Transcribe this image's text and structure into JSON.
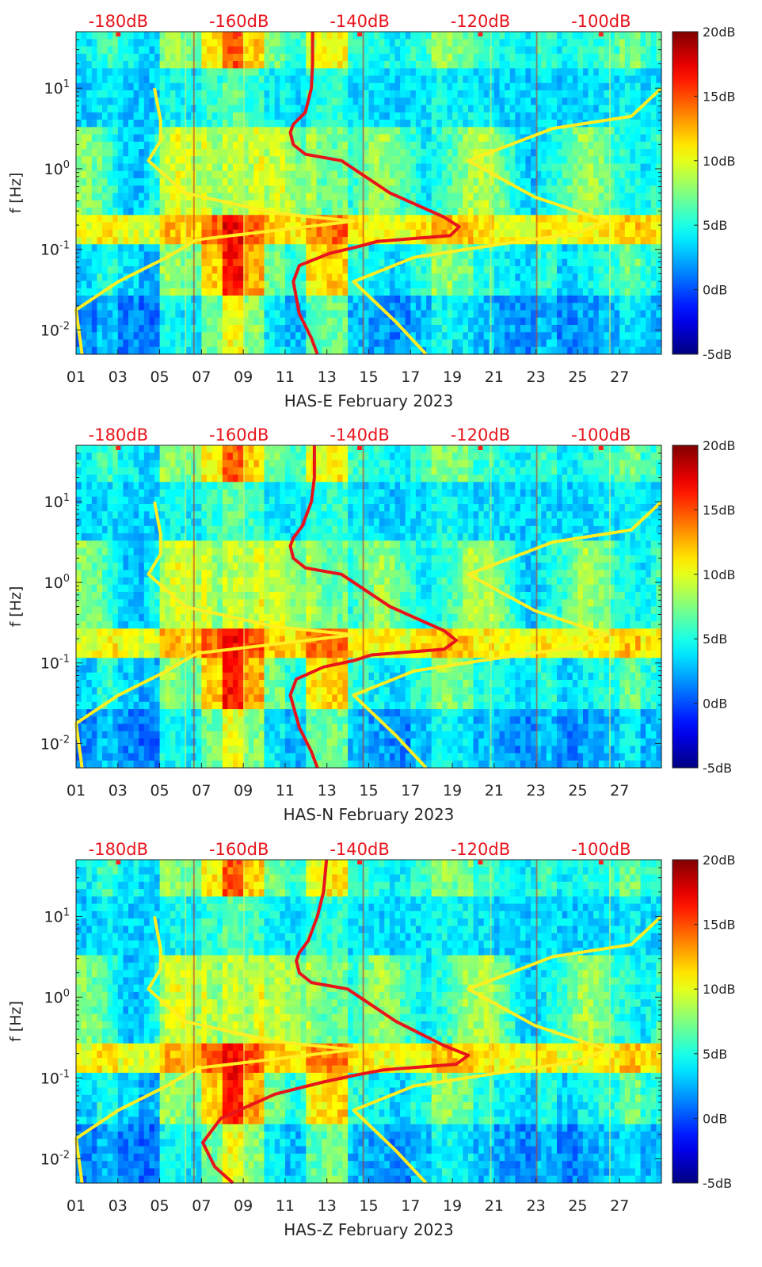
{
  "chart_data": [
    {
      "type": "heatmap",
      "title": "HAS-E February 2023",
      "xlabel": "HAS-E February 2023",
      "ylabel": "f [Hz]",
      "x_ticks": [
        "01",
        "03",
        "05",
        "07",
        "09",
        "11",
        "13",
        "15",
        "17",
        "19",
        "21",
        "23",
        "25",
        "27"
      ],
      "y_ticks": [
        "10^-2",
        "10^-1",
        "10^0",
        "10^1"
      ],
      "top_axis_ticks": [
        "-180dB",
        "-160dB",
        "-140dB",
        "-120dB",
        "-100dB"
      ],
      "colorbar_ticks": [
        "20dB",
        "15dB",
        "10dB",
        "5dB",
        "0dB",
        "-5dB"
      ],
      "xlim": [
        1,
        29
      ],
      "ylim_log10": [
        -2.3,
        1.7
      ],
      "top_axis_range_db": [
        -187,
        -90
      ],
      "color_range_db": [
        -5,
        20
      ],
      "series": [
        {
          "name": "median PSD (red)",
          "color": "#e8141c",
          "points": [
            [
              -147.8,
              1.7
            ],
            [
              -147.8,
              1.3
            ],
            [
              -148,
              1.0
            ],
            [
              -149,
              0.7
            ],
            [
              -151,
              0.55
            ],
            [
              -151.5,
              0.45
            ],
            [
              -151,
              0.3
            ],
            [
              -149,
              0.18
            ],
            [
              -143,
              0.1
            ],
            [
              -135,
              -0.3
            ],
            [
              -126,
              -0.6
            ],
            [
              -123.5,
              -0.72
            ],
            [
              -125,
              -0.83
            ],
            [
              -137,
              -0.9
            ],
            [
              -140.5,
              -0.97
            ],
            [
              -145,
              -1.05
            ],
            [
              -150,
              -1.2
            ],
            [
              -151,
              -1.4
            ],
            [
              -150,
              -1.8
            ],
            [
              -148,
              -2.1
            ],
            [
              -147,
              -2.3
            ]
          ]
        },
        {
          "name": "reference model 1 (yellow)",
          "color": "#ffee22",
          "points": [
            [
              -174,
              1.0
            ],
            [
              -173,
              0.6
            ],
            [
              -173,
              0.35
            ],
            [
              -175,
              0.1
            ],
            [
              -169,
              -0.3
            ],
            [
              -154,
              -0.55
            ],
            [
              -141,
              -0.65
            ],
            [
              -167,
              -0.88
            ],
            [
              -172,
              -1.1
            ],
            [
              -180,
              -1.4
            ],
            [
              -187,
              -1.75
            ],
            [
              -186,
              -2.3
            ]
          ]
        },
        {
          "name": "reference model 2 (yellow)",
          "color": "#ffee22",
          "points": [
            [
              -90,
              1.0
            ],
            [
              -95,
              0.65
            ],
            [
              -108,
              0.5
            ],
            [
              -122,
              0.1
            ],
            [
              -111,
              -0.35
            ],
            [
              -99,
              -0.65
            ],
            [
              -104,
              -0.8
            ],
            [
              -118,
              -0.95
            ],
            [
              -131,
              -1.1
            ],
            [
              -141,
              -1.4
            ],
            [
              -134,
              -1.9
            ],
            [
              -129,
              -2.3
            ]
          ]
        }
      ]
    },
    {
      "type": "heatmap",
      "title": "HAS-N February 2023",
      "xlabel": "HAS-N February 2023",
      "ylabel": "f [Hz]",
      "x_ticks": [
        "01",
        "03",
        "05",
        "07",
        "09",
        "11",
        "13",
        "15",
        "17",
        "19",
        "21",
        "23",
        "25",
        "27"
      ],
      "y_ticks": [
        "10^-2",
        "10^-1",
        "10^0",
        "10^1"
      ],
      "top_axis_ticks": [
        "-180dB",
        "-160dB",
        "-140dB",
        "-120dB",
        "-100dB"
      ],
      "colorbar_ticks": [
        "20dB",
        "15dB",
        "10dB",
        "5dB",
        "0dB",
        "-5dB"
      ],
      "xlim": [
        1,
        29
      ],
      "ylim_log10": [
        -2.3,
        1.7
      ],
      "top_axis_range_db": [
        -187,
        -90
      ],
      "color_range_db": [
        -5,
        20
      ],
      "series": [
        {
          "name": "median PSD (red)",
          "color": "#e8141c",
          "points": [
            [
              -147.5,
              1.7
            ],
            [
              -147.5,
              1.3
            ],
            [
              -148,
              1.0
            ],
            [
              -149.5,
              0.7
            ],
            [
              -151,
              0.55
            ],
            [
              -151.5,
              0.45
            ],
            [
              -151,
              0.3
            ],
            [
              -149,
              0.18
            ],
            [
              -143,
              0.1
            ],
            [
              -135,
              -0.3
            ],
            [
              -126,
              -0.6
            ],
            [
              -124,
              -0.72
            ],
            [
              -126,
              -0.83
            ],
            [
              -138,
              -0.9
            ],
            [
              -141,
              -0.97
            ],
            [
              -146,
              -1.05
            ],
            [
              -150.5,
              -1.2
            ],
            [
              -151.5,
              -1.4
            ],
            [
              -150,
              -1.8
            ],
            [
              -148,
              -2.1
            ],
            [
              -147,
              -2.3
            ]
          ]
        },
        {
          "name": "reference model 1 (yellow)",
          "color": "#ffee22",
          "points": [
            [
              -174,
              1.0
            ],
            [
              -173,
              0.6
            ],
            [
              -173,
              0.35
            ],
            [
              -175,
              0.1
            ],
            [
              -169,
              -0.3
            ],
            [
              -154,
              -0.55
            ],
            [
              -141,
              -0.65
            ],
            [
              -167,
              -0.88
            ],
            [
              -172,
              -1.1
            ],
            [
              -180,
              -1.4
            ],
            [
              -187,
              -1.75
            ],
            [
              -186,
              -2.3
            ]
          ]
        },
        {
          "name": "reference model 2 (yellow)",
          "color": "#ffee22",
          "points": [
            [
              -90,
              1.0
            ],
            [
              -95,
              0.65
            ],
            [
              -108,
              0.5
            ],
            [
              -122,
              0.1
            ],
            [
              -111,
              -0.35
            ],
            [
              -99,
              -0.65
            ],
            [
              -104,
              -0.8
            ],
            [
              -118,
              -0.95
            ],
            [
              -131,
              -1.1
            ],
            [
              -141,
              -1.4
            ],
            [
              -134,
              -1.9
            ],
            [
              -129,
              -2.3
            ]
          ]
        }
      ]
    },
    {
      "type": "heatmap",
      "title": "HAS-Z February 2023",
      "xlabel": "HAS-Z February 2023",
      "ylabel": "f [Hz]",
      "x_ticks": [
        "01",
        "03",
        "05",
        "07",
        "09",
        "11",
        "13",
        "15",
        "17",
        "19",
        "21",
        "23",
        "25",
        "27"
      ],
      "y_ticks": [
        "10^-2",
        "10^-1",
        "10^0",
        "10^1"
      ],
      "top_axis_ticks": [
        "-180dB",
        "-160dB",
        "-140dB",
        "-120dB",
        "-100dB"
      ],
      "colorbar_ticks": [
        "20dB",
        "15dB",
        "10dB",
        "5dB",
        "0dB",
        "-5dB"
      ],
      "xlim": [
        1,
        29
      ],
      "ylim_log10": [
        -2.3,
        1.7
      ],
      "top_axis_range_db": [
        -187,
        -90
      ],
      "color_range_db": [
        -5,
        20
      ],
      "series": [
        {
          "name": "median PSD (red)",
          "color": "#e8141c",
          "points": [
            [
              -145.5,
              1.7
            ],
            [
              -146,
              1.3
            ],
            [
              -147,
              1.0
            ],
            [
              -148.5,
              0.7
            ],
            [
              -150,
              0.55
            ],
            [
              -150.5,
              0.45
            ],
            [
              -150,
              0.3
            ],
            [
              -148,
              0.18
            ],
            [
              -142,
              0.1
            ],
            [
              -134,
              -0.3
            ],
            [
              -126,
              -0.6
            ],
            [
              -122,
              -0.72
            ],
            [
              -124,
              -0.83
            ],
            [
              -136,
              -0.9
            ],
            [
              -141,
              -0.97
            ],
            [
              -146,
              -1.05
            ],
            [
              -154,
              -1.2
            ],
            [
              -163,
              -1.5
            ],
            [
              -166,
              -1.8
            ],
            [
              -164,
              -2.1
            ],
            [
              -161,
              -2.3
            ]
          ]
        },
        {
          "name": "reference model 1 (yellow)",
          "color": "#ffee22",
          "points": [
            [
              -174,
              1.0
            ],
            [
              -173,
              0.6
            ],
            [
              -173,
              0.35
            ],
            [
              -175,
              0.1
            ],
            [
              -169,
              -0.3
            ],
            [
              -154,
              -0.55
            ],
            [
              -141,
              -0.65
            ],
            [
              -167,
              -0.88
            ],
            [
              -172,
              -1.1
            ],
            [
              -180,
              -1.4
            ],
            [
              -187,
              -1.75
            ],
            [
              -186,
              -2.3
            ]
          ]
        },
        {
          "name": "reference model 2 (yellow)",
          "color": "#ffee22",
          "points": [
            [
              -90,
              1.0
            ],
            [
              -95,
              0.65
            ],
            [
              -108,
              0.5
            ],
            [
              -122,
              0.1
            ],
            [
              -111,
              -0.35
            ],
            [
              -99,
              -0.65
            ],
            [
              -104,
              -0.8
            ],
            [
              -118,
              -0.95
            ],
            [
              -131,
              -1.1
            ],
            [
              -141,
              -1.4
            ],
            [
              -134,
              -1.9
            ],
            [
              -129,
              -2.3
            ]
          ]
        }
      ]
    }
  ]
}
